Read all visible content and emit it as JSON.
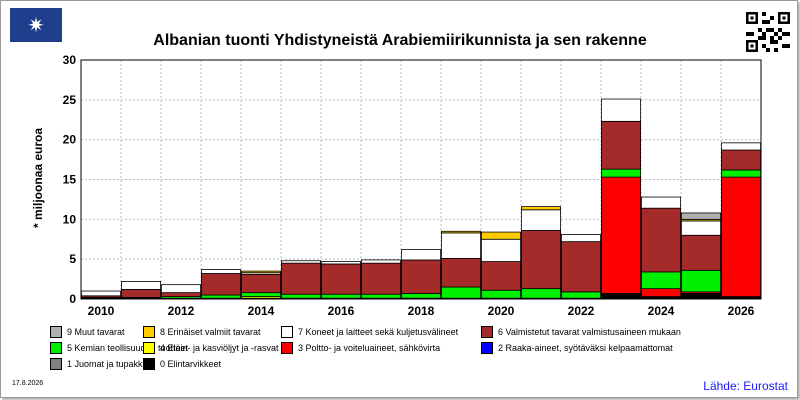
{
  "header": {
    "logo_glyph": "✷",
    "logo_icon": "flag-emblem-icon",
    "qr_icon": "qr-code-icon"
  },
  "footer": {
    "date": "17.8.2026",
    "source": "Lähde: Eurostat"
  },
  "chart_data": {
    "type": "bar",
    "stacked": true,
    "title": "Albanian tuonti Yhdistyneistä Arabiemiirikunnista ja sen rakenne",
    "ylabel": "* miljoonaa euroa",
    "xlabel": "",
    "ylim": [
      0,
      30
    ],
    "yticks": [
      0,
      5,
      10,
      15,
      20,
      25,
      30
    ],
    "grid": true,
    "categories": [
      "2010",
      "2011",
      "2012",
      "2013",
      "2014",
      "2015",
      "2016",
      "2017",
      "2018",
      "2019",
      "2020",
      "2021",
      "2022",
      "2023",
      "2024",
      "2025",
      "2026"
    ],
    "xtick_labels": [
      "2010",
      "",
      "2012",
      "",
      "2014",
      "",
      "2016",
      "",
      "2018",
      "",
      "2020",
      "",
      "2022",
      "",
      "2024",
      "",
      "2026"
    ],
    "series": [
      {
        "name": "0 Elintarvikkeet",
        "color": "#000000",
        "values": [
          0.1,
          0.1,
          0.1,
          0.1,
          0.1,
          0.1,
          0.1,
          0.1,
          0.1,
          0.1,
          0.1,
          0.1,
          0.1,
          0.7,
          0.3,
          0.7,
          0.3
        ]
      },
      {
        "name": "1 Juomat ja tupakka",
        "color": "#808080",
        "values": [
          0,
          0,
          0,
          0,
          0,
          0,
          0,
          0,
          0,
          0,
          0,
          0,
          0,
          0,
          0,
          0,
          0
        ]
      },
      {
        "name": "2 Raaka-aineet, syötäväksi kelpaamattomat",
        "color": "#0000ff",
        "values": [
          0,
          0,
          0,
          0,
          0,
          0,
          0,
          0,
          0,
          0,
          0,
          0,
          0,
          0,
          0,
          0,
          0
        ]
      },
      {
        "name": "3 Poltto- ja voiteluaineet, sähkövirta",
        "color": "#ff0000",
        "values": [
          0,
          0,
          0,
          0,
          0,
          0,
          0,
          0,
          0,
          0,
          0,
          0,
          0,
          14.6,
          1.0,
          0.2,
          15.0
        ]
      },
      {
        "name": "4 Eläin- ja kasviöljyt ja -rasvat",
        "color": "#ffff00",
        "values": [
          0,
          0,
          0,
          0,
          0.2,
          0,
          0,
          0,
          0,
          0,
          0,
          0,
          0,
          0,
          0,
          0,
          0
        ]
      },
      {
        "name": "5 Kemian teollisuuden tuotteet",
        "color": "#00ee00",
        "values": [
          0.1,
          0.1,
          0.2,
          0.4,
          0.5,
          0.5,
          0.5,
          0.5,
          0.6,
          1.4,
          1.0,
          1.2,
          0.8,
          1.0,
          2.1,
          2.7,
          0.9
        ]
      },
      {
        "name": "6 Valmistetut tavarat valmistusaineen mukaan",
        "color": "#a52a2a",
        "values": [
          0.2,
          1.0,
          0.5,
          2.7,
          2.3,
          3.9,
          3.8,
          3.9,
          4.2,
          3.6,
          3.6,
          7.3,
          6.3,
          6.0,
          8.0,
          4.4,
          2.5
        ]
      },
      {
        "name": "7 Koneet ja laitteet sekä kuljetusvälineet",
        "color": "#ffffff",
        "values": [
          0.6,
          1.0,
          1.0,
          0.5,
          0.2,
          0.3,
          0.3,
          0.4,
          1.3,
          3.2,
          2.8,
          2.6,
          0.9,
          2.8,
          1.4,
          1.8,
          0.9
        ]
      },
      {
        "name": "8 Erinäiset valmiit tavarat",
        "color": "#ffcc00",
        "values": [
          0,
          0,
          0,
          0,
          0.2,
          0,
          0,
          0,
          0,
          0.2,
          0.9,
          0.4,
          0,
          0,
          0,
          0.2,
          0
        ]
      },
      {
        "name": "9 Muut tavarat",
        "color": "#b0b0b0",
        "values": [
          0,
          0,
          0,
          0,
          0,
          0,
          0,
          0,
          0,
          0,
          0,
          0,
          0,
          0,
          0,
          0.8,
          0
        ]
      }
    ],
    "legend_position": "bottom",
    "legend_order": [
      9,
      8,
      7,
      6,
      5,
      4,
      3,
      2,
      1,
      0
    ]
  }
}
